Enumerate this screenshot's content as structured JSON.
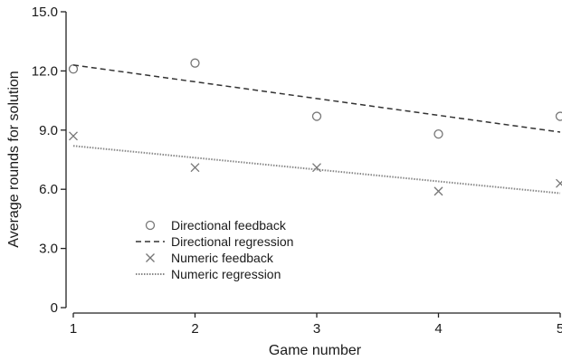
{
  "chart_data": {
    "type": "scatter",
    "xlabel": "Game number",
    "ylabel": "Average rounds for solution",
    "xlim": [
      1,
      5
    ],
    "ylim": [
      0,
      15
    ],
    "x_ticks": [
      "1",
      "2",
      "3",
      "4",
      "5"
    ],
    "y_ticks": [
      "0",
      "3.0",
      "6.0",
      "9.0",
      "12.0",
      "15.0"
    ],
    "grid": false,
    "legend_position": "lower-left",
    "series": [
      {
        "name": "Directional feedback",
        "kind": "scatter",
        "marker": "circle",
        "color": "#777777",
        "x": [
          1,
          2,
          3,
          4,
          5
        ],
        "y": [
          12.1,
          12.4,
          9.7,
          8.8,
          9.7
        ]
      },
      {
        "name": "Directional regression",
        "kind": "line",
        "style": "dashed",
        "color": "#333333",
        "x": [
          1,
          5
        ],
        "y": [
          12.3,
          8.9
        ]
      },
      {
        "name": "Numeric feedback",
        "kind": "scatter",
        "marker": "x",
        "color": "#777777",
        "x": [
          1,
          2,
          3,
          4,
          5
        ],
        "y": [
          8.7,
          7.1,
          7.1,
          5.9,
          6.3
        ]
      },
      {
        "name": "Numeric regression",
        "kind": "line",
        "style": "dotted",
        "color": "#888888",
        "x": [
          1,
          5
        ],
        "y": [
          8.2,
          5.8
        ]
      }
    ]
  }
}
